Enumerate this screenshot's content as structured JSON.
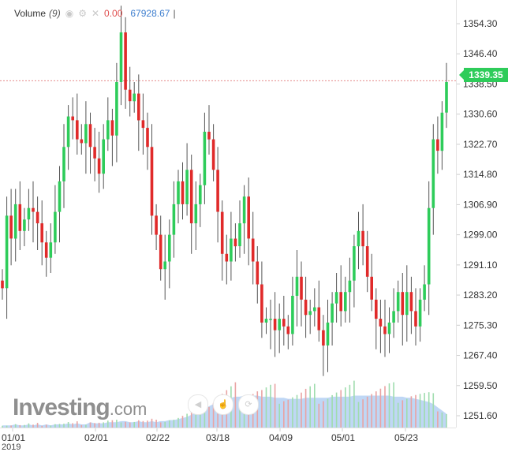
{
  "legend": {
    "name": "Volume",
    "period": "(9)",
    "icons": [
      "eye-icon",
      "gear-icon",
      "close-icon"
    ],
    "value_red": "0.00",
    "value_blue": "67928.67"
  },
  "last_price": "1339.35",
  "logo": {
    "main": "Investing",
    "suffix": ".com"
  },
  "year_label": "2019",
  "colors": {
    "up": "#2ecc5a",
    "down": "#e02a2a",
    "volume_area": "#a9c9f2",
    "price_line": "#e58a8a"
  },
  "chart_data": {
    "type": "candlestick",
    "ylim": [
      1248.5,
      1360.5
    ],
    "y_ticks": [
      "1354.30",
      "1346.40",
      "1338.50",
      "1330.60",
      "1322.70",
      "1314.80",
      "1306.90",
      "1299.00",
      "1291.10",
      "1283.20",
      "1275.30",
      "1267.40",
      "1259.50",
      "1251.60"
    ],
    "x_ticks": [
      "01/01",
      "02/01",
      "02/22",
      "03/18",
      "04/09",
      "05/01",
      "05/23"
    ],
    "current_price_line": 1339.35,
    "grid": false,
    "closes": [
      1285,
      1304,
      1298,
      1307,
      1300,
      1303,
      1306,
      1305,
      1302,
      1297,
      1293,
      1297,
      1305,
      1313,
      1322,
      1330,
      1329,
      1324,
      1323,
      1328,
      1322,
      1319,
      1315,
      1324,
      1329,
      1325,
      1339,
      1352,
      1337,
      1334,
      1336,
      1329,
      1327,
      1322,
      1304,
      1299,
      1290,
      1292,
      1299,
      1307,
      1313,
      1307,
      1316,
      1302,
      1307,
      1312,
      1326,
      1324,
      1316,
      1305,
      1294,
      1292,
      1298,
      1296,
      1302,
      1309,
      1298,
      1292,
      1286,
      1276,
      1277,
      1277,
      1274,
      1277,
      1275,
      1273,
      1283,
      1288,
      1282,
      1278,
      1279,
      1280,
      1274,
      1270,
      1276,
      1281,
      1284,
      1279,
      1284,
      1287,
      1296,
      1300,
      1296,
      1288,
      1282,
      1277,
      1275,
      1273,
      1276,
      1279,
      1284,
      1278,
      1284,
      1279,
      1275,
      1282,
      1286,
      1306,
      1324,
      1321,
      1331,
      1339
    ],
    "volume": [
      2,
      2,
      2,
      3,
      2,
      2,
      3,
      2,
      3,
      2,
      3,
      2,
      3,
      3,
      3,
      4,
      3,
      4,
      3,
      3,
      5,
      4,
      4,
      4,
      5,
      5,
      5,
      6,
      6,
      5,
      5,
      6,
      5,
      5,
      6,
      5,
      6,
      6,
      7,
      7,
      8,
      9,
      10,
      12,
      14,
      16,
      18,
      20,
      22,
      24,
      26,
      27,
      28,
      29,
      29,
      30,
      30,
      30,
      30,
      29,
      29,
      29,
      28,
      28,
      28,
      27,
      27,
      27,
      27,
      28,
      28,
      28,
      28,
      28,
      28,
      29,
      29,
      29,
      29,
      29,
      30,
      30,
      30,
      30,
      30,
      30,
      30,
      30,
      30,
      29,
      29,
      29,
      28,
      28,
      27,
      26,
      25,
      24,
      22,
      19,
      16,
      13
    ]
  }
}
